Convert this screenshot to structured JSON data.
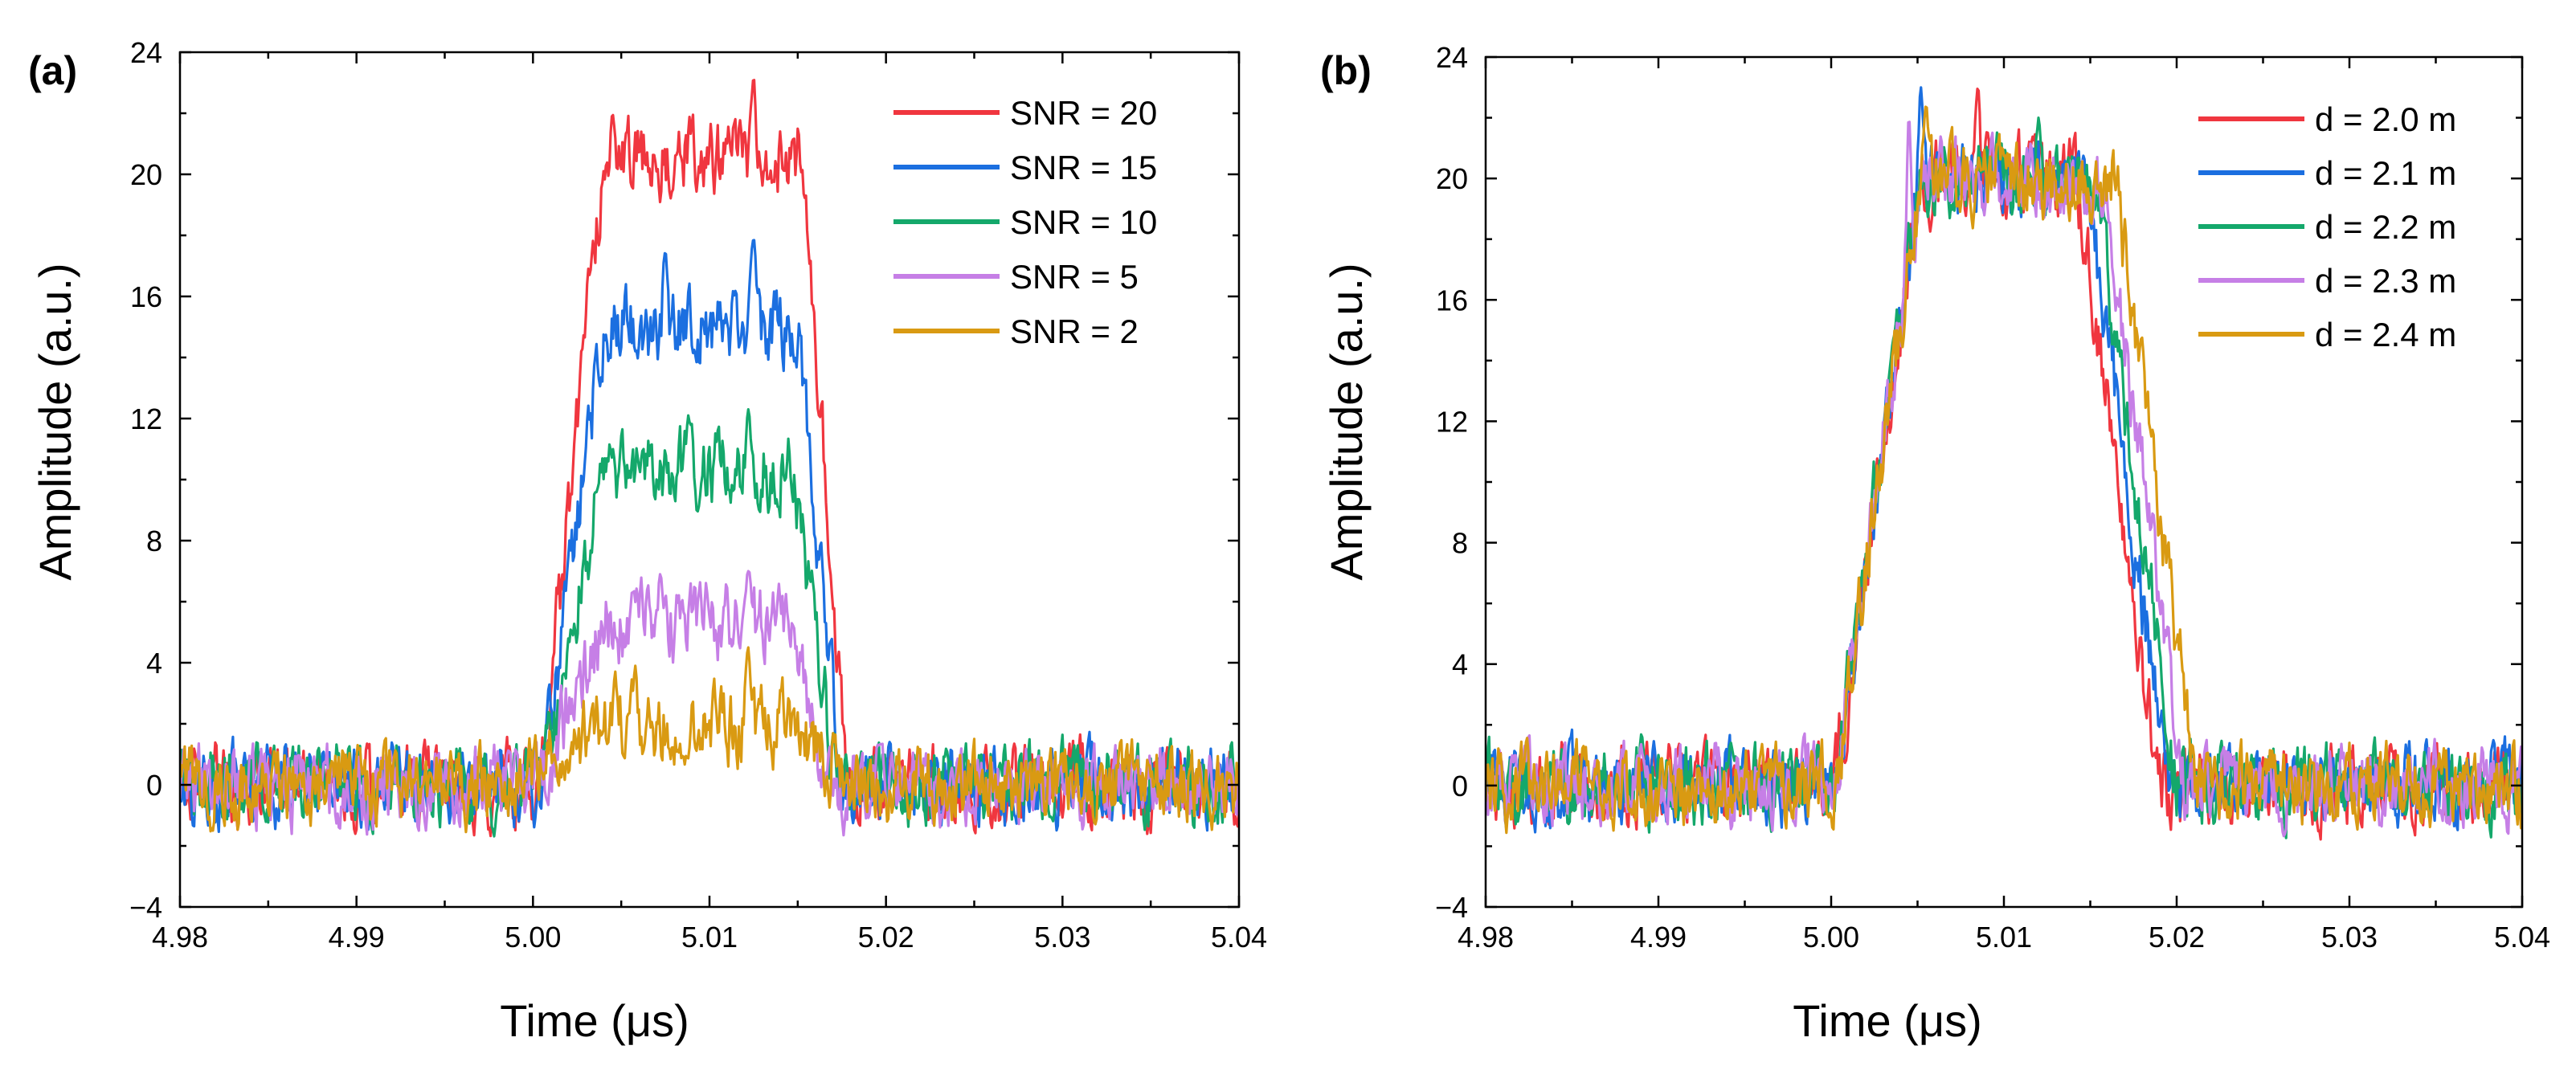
{
  "colors": {
    "red": "#F0363F",
    "blue": "#1B6FE0",
    "green": "#14A86B",
    "violet": "#C67FE6",
    "gold": "#D99A12"
  },
  "chart_data": [
    {
      "panel": "(a)",
      "type": "line",
      "xlabel": "Time (μs)",
      "ylabel": "Amplitude (a.u.)",
      "xlim": [
        4.98,
        5.04
      ],
      "ylim": [
        -4,
        24
      ],
      "xticks": [
        4.98,
        4.99,
        5.0,
        5.01,
        5.02,
        5.03,
        5.04
      ],
      "xtick_labels": [
        "4.98",
        "4.99",
        "5.00",
        "5.01",
        "5.02",
        "5.03",
        "5.04"
      ],
      "yticks": [
        -4,
        0,
        4,
        8,
        12,
        16,
        20,
        24
      ],
      "ytick_labels": [
        "−4",
        "0",
        "4",
        "8",
        "12",
        "16",
        "20",
        "24"
      ],
      "legend_position": "top-right",
      "series": [
        {
          "name": "SNR = 20",
          "color": "#F0363F",
          "noise": 1.0,
          "start": 5.0005,
          "end": 5.0178,
          "rise": 0.0035,
          "fall": 0.0025,
          "peak": 20.5,
          "spikes": [
            [
              5.0125,
              23.2
            ],
            [
              5.0045,
              22.0
            ]
          ]
        },
        {
          "name": "SNR = 15",
          "color": "#1B6FE0",
          "noise": 1.0,
          "start": 5.0005,
          "end": 5.0175,
          "rise": 0.0035,
          "fall": 0.0025,
          "peak": 15.0,
          "spikes": [
            [
              5.0125,
              17.9
            ],
            [
              5.0075,
              17.5
            ]
          ]
        },
        {
          "name": "SNR = 10",
          "color": "#14A86B",
          "noise": 1.0,
          "start": 5.0005,
          "end": 5.0172,
          "rise": 0.0035,
          "fall": 0.0025,
          "peak": 10.4,
          "spikes": [
            [
              5.0122,
              12.3
            ],
            [
              5.0088,
              12.1
            ]
          ]
        },
        {
          "name": "SNR = 5",
          "color": "#C67FE6",
          "noise": 1.0,
          "start": 5.0005,
          "end": 5.0168,
          "rise": 0.0035,
          "fall": 0.0025,
          "peak": 5.3,
          "spikes": [
            [
              5.0122,
              7.0
            ],
            [
              5.0072,
              6.9
            ]
          ]
        },
        {
          "name": "SNR = 2",
          "color": "#D99A12",
          "noise": 1.0,
          "start": 4.999,
          "end": 5.019,
          "rise": 0.005,
          "fall": 0.005,
          "peak": 2.0,
          "spikes": [
            [
              5.0122,
              4.5
            ],
            [
              5.0058,
              3.9
            ]
          ]
        }
      ]
    },
    {
      "panel": "(b)",
      "type": "line",
      "xlabel": "Time (μs)",
      "ylabel": "Amplitude (a.u.)",
      "xlim": [
        4.98,
        5.04
      ],
      "ylim": [
        -4,
        24
      ],
      "xticks": [
        4.98,
        4.99,
        5.0,
        5.01,
        5.02,
        5.03,
        5.04
      ],
      "xtick_labels": [
        "4.98",
        "4.99",
        "5.00",
        "5.01",
        "5.02",
        "5.03",
        "5.04"
      ],
      "yticks": [
        -4,
        0,
        4,
        8,
        12,
        16,
        20,
        24
      ],
      "ytick_labels": [
        "−4",
        "0",
        "4",
        "8",
        "12",
        "16",
        "20",
        "24"
      ],
      "legend_position": "top-right",
      "series": [
        {
          "name": "d = 2.0 m",
          "color": "#F0363F",
          "noise": 1.0,
          "start": 5.0002,
          "end": 5.019,
          "rise": 0.005,
          "fall": 0.0048,
          "peak": 20.0,
          "spikes": [
            [
              5.0085,
              23.0
            ]
          ]
        },
        {
          "name": "d = 2.1 m",
          "color": "#1B6FE0",
          "noise": 1.0,
          "start": 5.0002,
          "end": 5.0195,
          "rise": 0.005,
          "fall": 0.0048,
          "peak": 20.0,
          "spikes": [
            [
              5.0052,
              23.0
            ]
          ]
        },
        {
          "name": "d = 2.2 m",
          "color": "#14A86B",
          "noise": 1.0,
          "start": 5.0002,
          "end": 5.02,
          "rise": 0.005,
          "fall": 0.0048,
          "peak": 20.0,
          "spikes": [
            [
              5.012,
              22.0
            ]
          ]
        },
        {
          "name": "d = 2.3 m",
          "color": "#C67FE6",
          "noise": 1.0,
          "start": 5.0002,
          "end": 5.0205,
          "rise": 0.005,
          "fall": 0.0048,
          "peak": 20.0,
          "spikes": [
            [
              5.0045,
              22.0
            ]
          ]
        },
        {
          "name": "d = 2.4 m",
          "color": "#D99A12",
          "noise": 1.0,
          "start": 5.0002,
          "end": 5.0212,
          "rise": 0.005,
          "fall": 0.0048,
          "peak": 20.0,
          "spikes": [
            [
              5.0055,
              22.4
            ]
          ]
        }
      ]
    }
  ]
}
